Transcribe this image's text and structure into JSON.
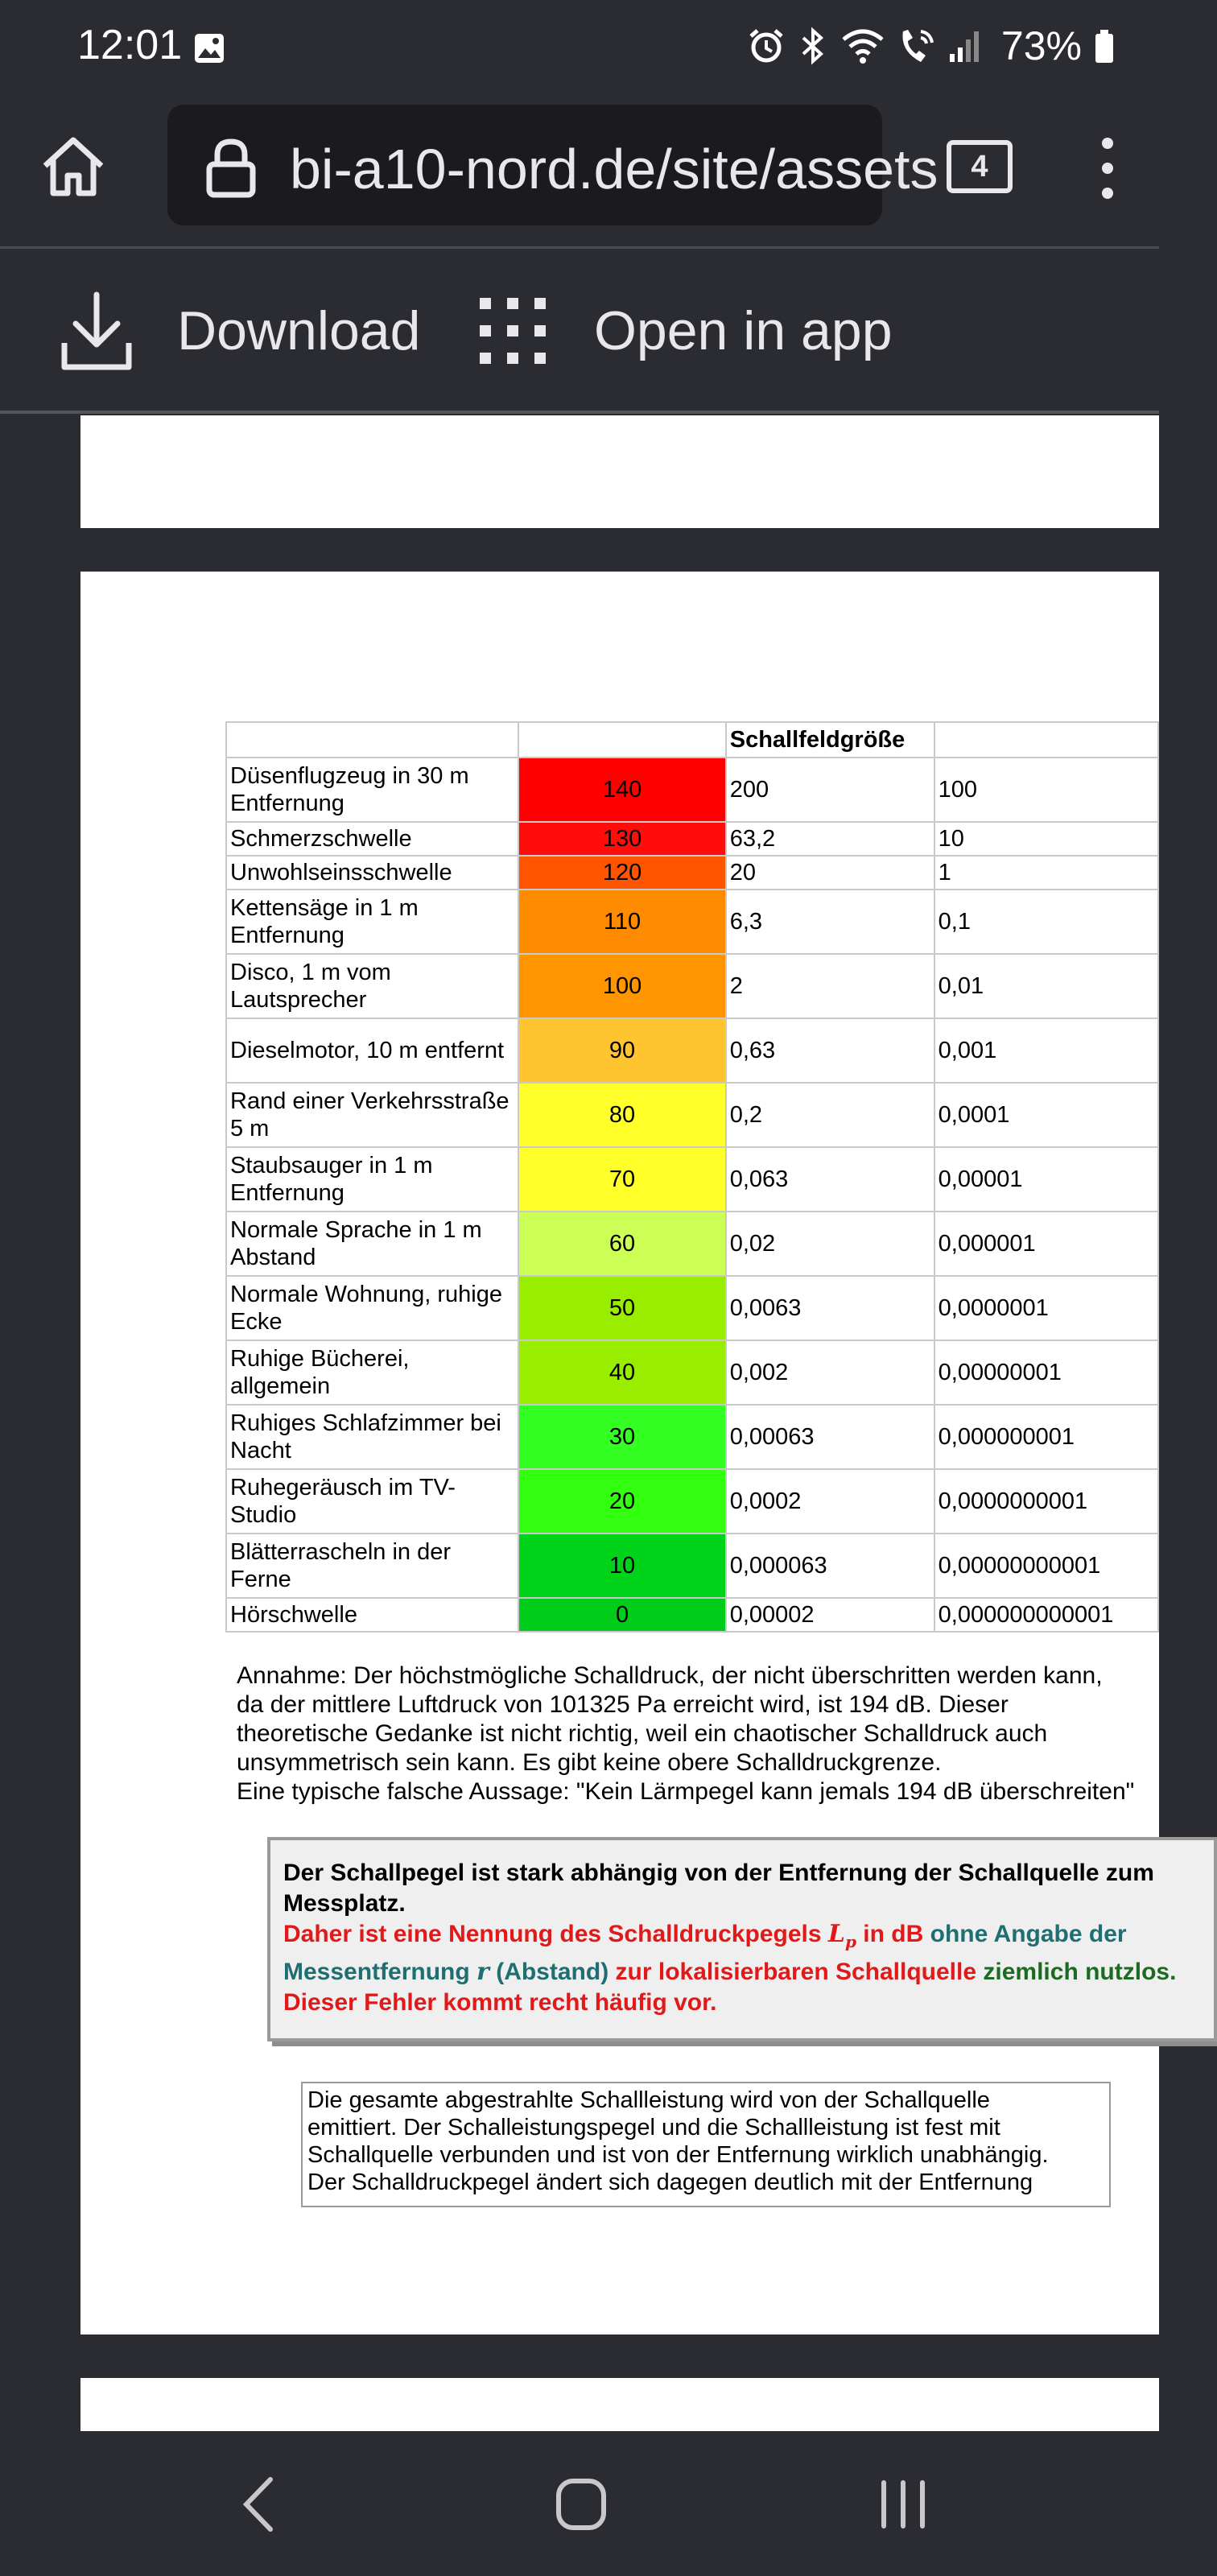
{
  "status": {
    "time": "12:01",
    "battery": "73%",
    "icons": [
      "image-icon",
      "alarm-icon",
      "bluetooth-icon",
      "wifi-icon",
      "wifi-call-icon",
      "signal-icon",
      "battery-icon"
    ]
  },
  "browser": {
    "url": "bi-a10-nord.de/site/assets",
    "tab_count": "4",
    "download_label": "Download",
    "open_app_label": "Open in app"
  },
  "table": {
    "header": "Schallfeldgröße",
    "rows": [
      {
        "name": "Düsenflugzeug in 30 m Entfernung",
        "db": "140",
        "color": "#ff0000",
        "p1": "200",
        "p2": "100"
      },
      {
        "name": "Schmerzschwelle",
        "db": "130",
        "color": "#ff0d0d",
        "p1": "63,2",
        "p2": "10"
      },
      {
        "name": "Unwohlseinsschwelle",
        "db": "120",
        "color": "#ff5500",
        "p1": "20",
        "p2": "1"
      },
      {
        "name": "Kettensäge in 1 m Entfernung",
        "db": "110",
        "color": "#ff8c00",
        "p1": "6,3",
        "p2": "0,1"
      },
      {
        "name": "Disco, 1 m vom Lautsprecher",
        "db": "100",
        "color": "#ff9500",
        "p1": "2",
        "p2": "0,01"
      },
      {
        "name": "Dieselmotor, 10 m entfernt",
        "db": "90",
        "color": "#ffc530",
        "p1": "0,63",
        "p2": "0,001"
      },
      {
        "name": "Rand einer Verkehrsstraße 5 m",
        "db": "80",
        "color": "#ffff2a",
        "p1": "0,2",
        "p2": "0,0001"
      },
      {
        "name": "Staubsauger in 1 m Entfernung",
        "db": "70",
        "color": "#ffff2a",
        "p1": "0,063",
        "p2": "0,00001"
      },
      {
        "name": "Normale Sprache in 1 m Abstand",
        "db": "60",
        "color": "#ccff55",
        "p1": "0,02",
        "p2": "0,000001"
      },
      {
        "name": "Normale Wohnung, ruhige Ecke",
        "db": "50",
        "color": "#99ee00",
        "p1": "0,0063",
        "p2": "0,0000001"
      },
      {
        "name": "Ruhige Bücherei, allgemein",
        "db": "40",
        "color": "#99ee00",
        "p1": "0,002",
        "p2": "0,00000001"
      },
      {
        "name": "Ruhiges Schlafzimmer bei Nacht",
        "db": "30",
        "color": "#33ff22",
        "p1": "0,00063",
        "p2": "0,000000001"
      },
      {
        "name": "Ruhegeräusch im TV-Studio",
        "db": "20",
        "color": "#33ff11",
        "p1": "0,0002",
        "p2": "0,0000000001"
      },
      {
        "name": "Blätterrascheln in der Ferne",
        "db": "10",
        "color": "#00d41a",
        "p1": "0,000063",
        "p2": "0,00000000001"
      },
      {
        "name": "Hörschwelle",
        "db": "0",
        "color": "#00cc1a",
        "p1": "0,00002",
        "p2": "0,000000000001"
      }
    ]
  },
  "annahme": {
    "l1": "Annahme: Der höchstmögliche Schalldruck, der nicht überschritten werden kann,",
    "l2": "da der mittlere Luftdruck von 101325 Pa erreicht wird, ist 194 dB. Dieser",
    "l3": "theoretische Gedanke ist nicht richtig, weil ein chaotischer Schalldruck auch",
    "l4": "unsymmetrisch sein kann. Es gibt keine obere Schalldruckgrenze.",
    "l5": "Eine typische falsche Aussage: \"Kein Lärmpegel kann jemals 194 dB überschreiten\""
  },
  "box": {
    "black": "Der Schallpegel ist stark abhängig von der Entfernung der Schallquelle zum Messplatz.",
    "red1": "Daher ist eine Nennung des Schalldruckpegels",
    "sym_L": "L",
    "sym_p": "p",
    "red2": "in dB",
    "teal1": "ohne Angabe der Messentfernung",
    "sym_r": "r",
    "teal2": "(Abstand)",
    "red3": "zur lokalisierbaren Schallquelle",
    "green1": "ziemlich nutzlos.",
    "red4": "Dieser Fehler kommt recht häufig vor."
  },
  "box2": {
    "l1": "Die gesamte abgestrahlte Schallleistung wird von der Schallquelle",
    "l2": "emittiert. Der Schalleistungspegel und die Schallleistung ist fest mit",
    "l3": "Schallquelle verbunden und ist von der Entfernung wirklich unabhängig.",
    "l4": "Der Schalldruckpegel ändert sich dagegen deutlich mit der Entfernung"
  }
}
